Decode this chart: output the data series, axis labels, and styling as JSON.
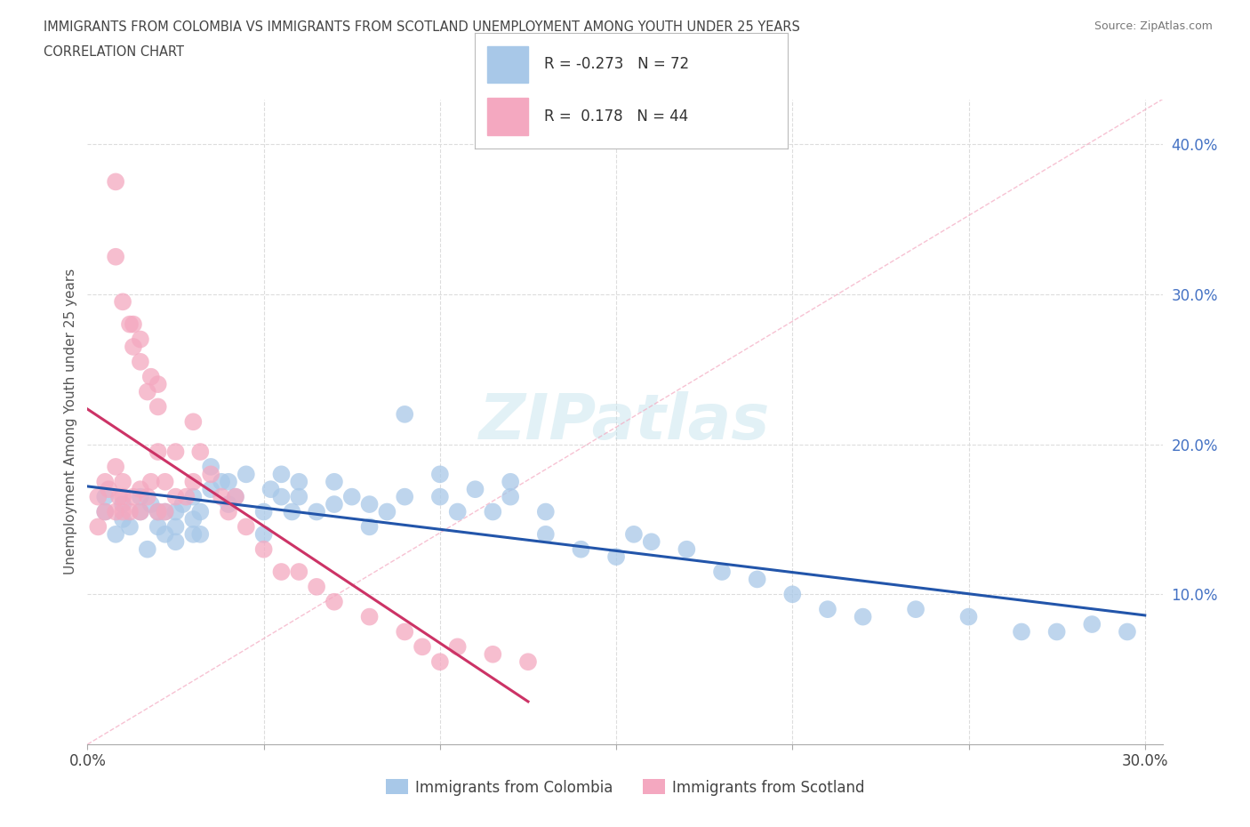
{
  "title_line1": "IMMIGRANTS FROM COLOMBIA VS IMMIGRANTS FROM SCOTLAND UNEMPLOYMENT AMONG YOUTH UNDER 25 YEARS",
  "title_line2": "CORRELATION CHART",
  "source_text": "Source: ZipAtlas.com",
  "watermark": "ZIPatlas",
  "ylabel": "Unemployment Among Youth under 25 years",
  "xlim": [
    0.0,
    0.305
  ],
  "ylim": [
    0.0,
    0.43
  ],
  "x_ticks": [
    0.0,
    0.05,
    0.1,
    0.15,
    0.2,
    0.25,
    0.3
  ],
  "x_tick_labels": [
    "0.0%",
    "",
    "",
    "",
    "",
    "",
    "30.0%"
  ],
  "y_ticks_right": [
    0.1,
    0.2,
    0.3,
    0.4
  ],
  "y_tick_labels_right": [
    "10.0%",
    "20.0%",
    "30.0%",
    "40.0%"
  ],
  "colombia_color": "#a8c8e8",
  "scotland_color": "#f4a8c0",
  "colombia_line_color": "#2255aa",
  "scotland_line_color": "#cc3366",
  "ref_line_color": "#f4a8c0",
  "grid_color": "#dddddd",
  "title_color": "#444444",
  "colombia_x": [
    0.005,
    0.005,
    0.008,
    0.01,
    0.01,
    0.012,
    0.015,
    0.015,
    0.017,
    0.018,
    0.02,
    0.02,
    0.022,
    0.022,
    0.025,
    0.025,
    0.025,
    0.027,
    0.03,
    0.03,
    0.03,
    0.032,
    0.032,
    0.035,
    0.035,
    0.038,
    0.04,
    0.04,
    0.042,
    0.045,
    0.05,
    0.05,
    0.052,
    0.055,
    0.055,
    0.058,
    0.06,
    0.06,
    0.065,
    0.07,
    0.07,
    0.075,
    0.08,
    0.08,
    0.085,
    0.09,
    0.09,
    0.1,
    0.1,
    0.105,
    0.11,
    0.115,
    0.12,
    0.12,
    0.13,
    0.13,
    0.14,
    0.15,
    0.155,
    0.16,
    0.17,
    0.18,
    0.19,
    0.2,
    0.21,
    0.22,
    0.235,
    0.25,
    0.265,
    0.275,
    0.285,
    0.295
  ],
  "colombia_y": [
    0.155,
    0.165,
    0.14,
    0.15,
    0.16,
    0.145,
    0.155,
    0.165,
    0.13,
    0.16,
    0.145,
    0.155,
    0.14,
    0.155,
    0.135,
    0.145,
    0.155,
    0.16,
    0.14,
    0.15,
    0.165,
    0.14,
    0.155,
    0.17,
    0.185,
    0.175,
    0.16,
    0.175,
    0.165,
    0.18,
    0.14,
    0.155,
    0.17,
    0.165,
    0.18,
    0.155,
    0.165,
    0.175,
    0.155,
    0.16,
    0.175,
    0.165,
    0.145,
    0.16,
    0.155,
    0.22,
    0.165,
    0.165,
    0.18,
    0.155,
    0.17,
    0.155,
    0.165,
    0.175,
    0.155,
    0.14,
    0.13,
    0.125,
    0.14,
    0.135,
    0.13,
    0.115,
    0.11,
    0.1,
    0.09,
    0.085,
    0.09,
    0.085,
    0.075,
    0.075,
    0.08,
    0.075
  ],
  "scotland_x": [
    0.003,
    0.003,
    0.005,
    0.005,
    0.006,
    0.008,
    0.008,
    0.009,
    0.01,
    0.01,
    0.01,
    0.012,
    0.013,
    0.015,
    0.015,
    0.017,
    0.018,
    0.02,
    0.02,
    0.022,
    0.022,
    0.025,
    0.025,
    0.028,
    0.03,
    0.03,
    0.032,
    0.035,
    0.038,
    0.04,
    0.042,
    0.045,
    0.05,
    0.055,
    0.06,
    0.065,
    0.07,
    0.08,
    0.09,
    0.095,
    0.1,
    0.105,
    0.115,
    0.125
  ],
  "scotland_y": [
    0.145,
    0.165,
    0.155,
    0.175,
    0.17,
    0.155,
    0.185,
    0.165,
    0.155,
    0.165,
    0.175,
    0.155,
    0.165,
    0.155,
    0.17,
    0.165,
    0.175,
    0.155,
    0.195,
    0.175,
    0.155,
    0.165,
    0.195,
    0.165,
    0.175,
    0.215,
    0.195,
    0.18,
    0.165,
    0.155,
    0.165,
    0.145,
    0.13,
    0.115,
    0.115,
    0.105,
    0.095,
    0.085,
    0.075,
    0.065,
    0.055,
    0.065,
    0.06,
    0.055
  ],
  "scotland_high_x": [
    0.008,
    0.008,
    0.01,
    0.012,
    0.013,
    0.013,
    0.015,
    0.015,
    0.017,
    0.018,
    0.02,
    0.02
  ],
  "scotland_high_y": [
    0.375,
    0.325,
    0.295,
    0.28,
    0.265,
    0.28,
    0.255,
    0.27,
    0.235,
    0.245,
    0.225,
    0.24
  ]
}
